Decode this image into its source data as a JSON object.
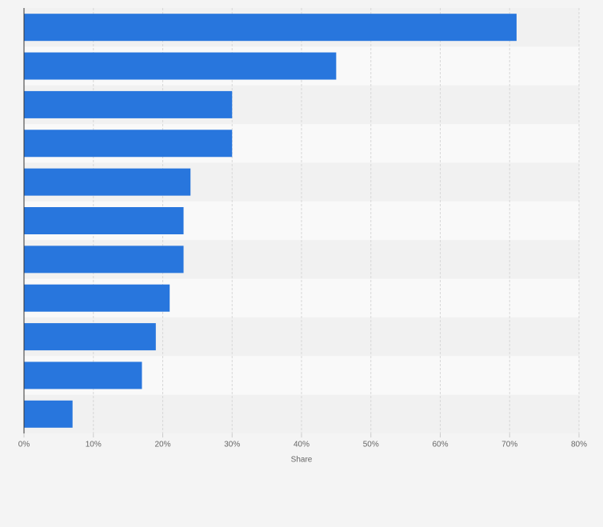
{
  "chart_data": {
    "type": "bar",
    "orientation": "horizontal",
    "categories": [
      null,
      null,
      null,
      null,
      null,
      null,
      null,
      null,
      null,
      null,
      null
    ],
    "values": [
      71,
      45,
      30,
      30,
      24,
      23,
      23,
      21,
      19,
      17,
      7
    ],
    "color": "#2876dd",
    "xlabel": "Share",
    "xlim": [
      0,
      80
    ],
    "xticks": [
      {
        "value": 0,
        "label": "0%"
      },
      {
        "value": 10,
        "label": "10%"
      },
      {
        "value": 20,
        "label": "20%"
      },
      {
        "value": 30,
        "label": "30%"
      },
      {
        "value": 40,
        "label": "40%"
      },
      {
        "value": 50,
        "label": "50%"
      },
      {
        "value": 60,
        "label": "60%"
      },
      {
        "value": 70,
        "label": "70%"
      },
      {
        "value": 80,
        "label": "80%"
      }
    ],
    "grid": true
  }
}
